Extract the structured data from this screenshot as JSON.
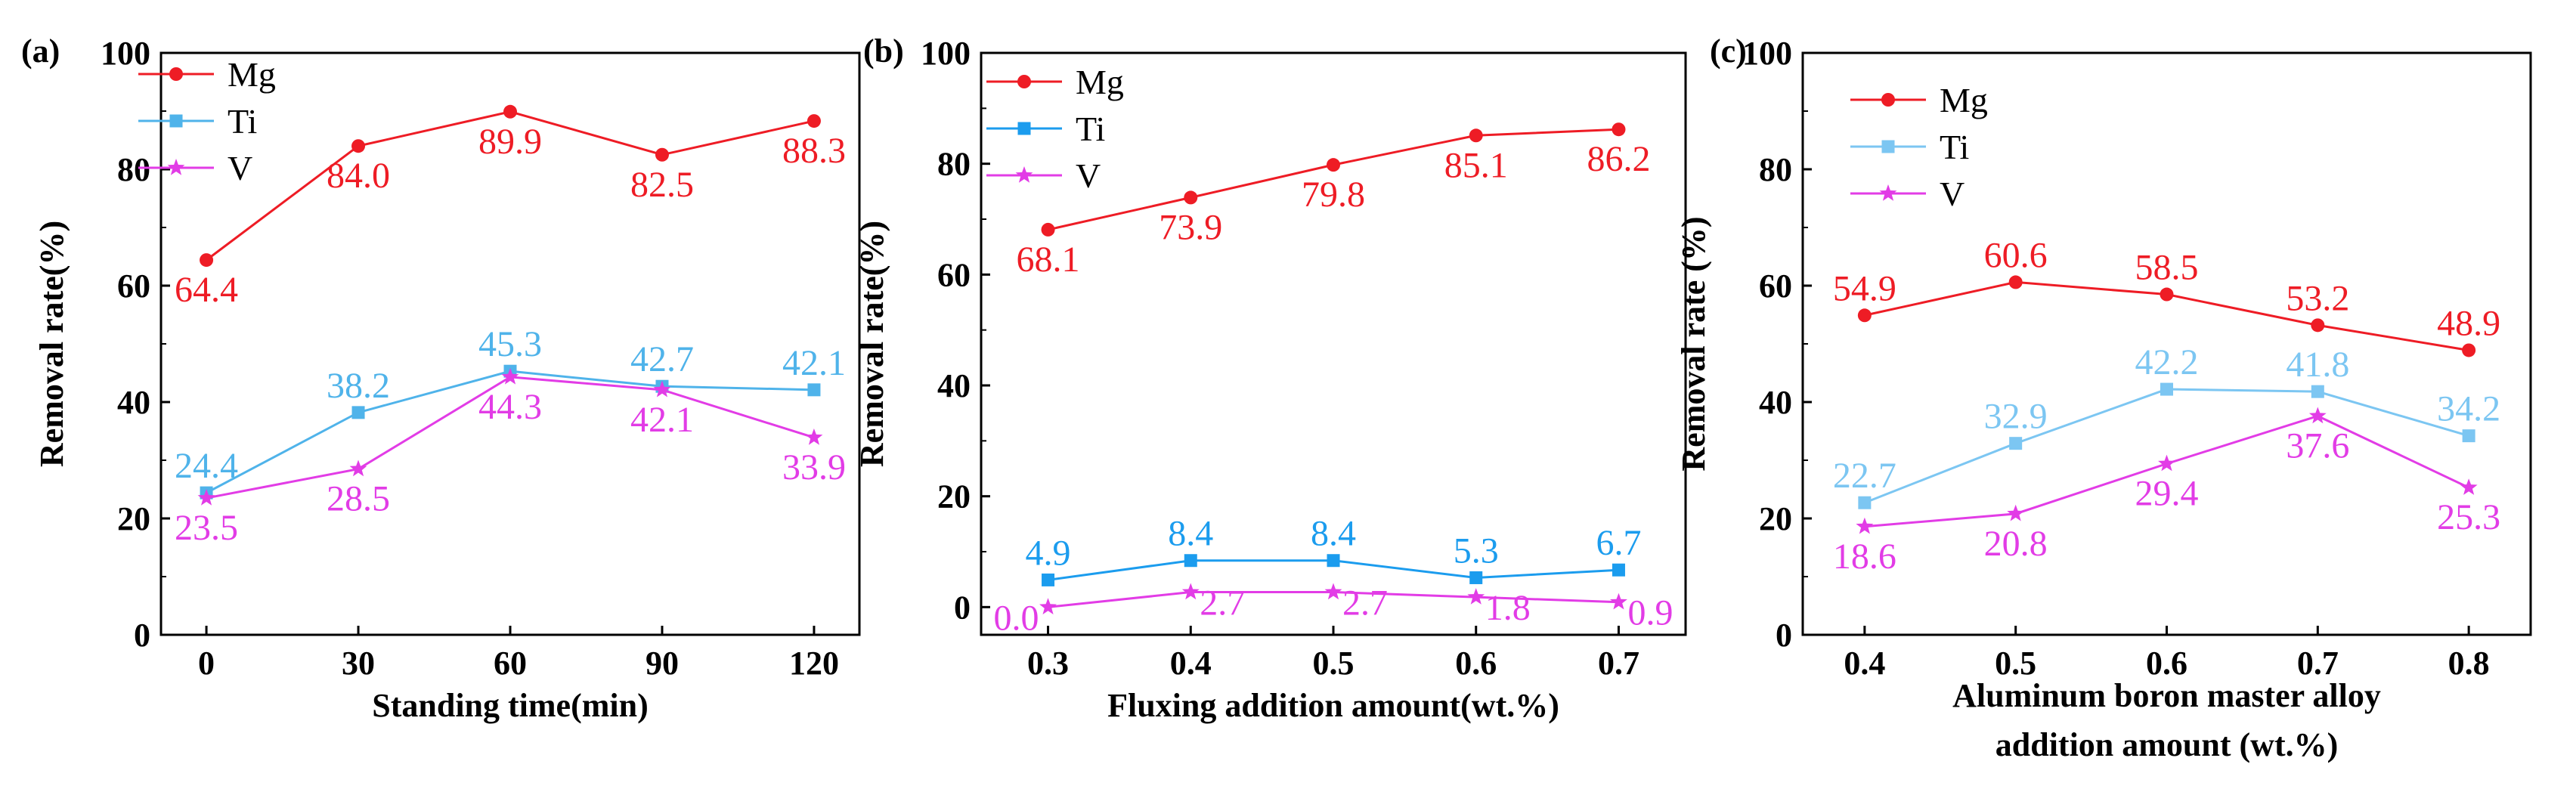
{
  "chart_data": [
    {
      "type": "line",
      "panel_label": "(a)",
      "xlabel": [
        "Standing time(min)"
      ],
      "ylabel": "Removal rate(%)",
      "categories": [
        "0",
        "30",
        "60",
        "90",
        "120"
      ],
      "ylim": [
        0,
        100
      ],
      "yticks": [
        "0",
        "20",
        "40",
        "60",
        "80",
        "100"
      ],
      "series": [
        {
          "name": "Mg",
          "color": "#ee1c25",
          "marker": "circle",
          "values": [
            64.4,
            84.0,
            89.9,
            82.5,
            88.3
          ],
          "labels": [
            "64.4",
            "84.0",
            "89.9",
            "82.5",
            "88.3"
          ],
          "label_pos": [
            "below",
            "below",
            "below",
            "below",
            "below"
          ]
        },
        {
          "name": "Ti",
          "color": "#4fb3ea",
          "marker": "square",
          "values": [
            24.4,
            38.2,
            45.3,
            42.7,
            42.1
          ],
          "labels": [
            "24.4",
            "38.2",
            "45.3",
            "42.7",
            "42.1"
          ],
          "label_pos": [
            "above",
            "above",
            "above",
            "above",
            "above"
          ]
        },
        {
          "name": "V",
          "color": "#e23ce6",
          "marker": "star",
          "values": [
            23.5,
            28.5,
            44.3,
            42.1,
            33.9
          ],
          "labels": [
            "23.5",
            "28.5",
            "44.3",
            "42.1",
            "33.9"
          ],
          "label_pos": [
            "below",
            "below",
            "below",
            "below",
            "below"
          ]
        }
      ]
    },
    {
      "type": "line",
      "panel_label": "(b)",
      "xlabel": [
        "Fluxing  addition amount(wt.%)"
      ],
      "ylabel": "Removal rate(%)",
      "categories": [
        "0.3",
        "0.4",
        "0.5",
        "0.6",
        "0.7"
      ],
      "ylim": [
        -5,
        100
      ],
      "yticks": [
        "0",
        "20",
        "40",
        "60",
        "80",
        "100"
      ],
      "series": [
        {
          "name": "Mg",
          "color": "#ee1c25",
          "marker": "circle",
          "values": [
            68.1,
            73.9,
            79.8,
            85.1,
            86.2
          ],
          "labels": [
            "68.1",
            "73.9",
            "79.8",
            "85.1",
            "86.2"
          ],
          "label_pos": [
            "below",
            "below",
            "below",
            "below",
            "below"
          ]
        },
        {
          "name": "Ti",
          "color": "#1b9cee",
          "marker": "square",
          "values": [
            4.9,
            8.4,
            8.4,
            5.3,
            6.7
          ],
          "labels": [
            "4.9",
            "8.4",
            "8.4",
            "5.3",
            "6.7"
          ],
          "label_pos": [
            "above",
            "above",
            "above",
            "above",
            "above"
          ]
        },
        {
          "name": "V",
          "color": "#e23ce6",
          "marker": "star",
          "values": [
            0.0,
            2.7,
            2.7,
            1.8,
            0.9
          ],
          "labels": [
            "0.0",
            "2.7",
            "2.7",
            "1.8",
            "0.9"
          ],
          "label_pos": [
            "left",
            "right",
            "right",
            "right",
            "right"
          ]
        }
      ]
    },
    {
      "type": "line",
      "panel_label": "(c)",
      "xlabel": [
        "Aluminum boron master alloy",
        "addition amount (wt.%)"
      ],
      "ylabel": "Removal rate (%)",
      "categories": [
        "0.4",
        "0.5",
        "0.6",
        "0.7",
        "0.8"
      ],
      "ylim": [
        0,
        100
      ],
      "yticks": [
        "0",
        "20",
        "40",
        "60",
        "80",
        "100"
      ],
      "series": [
        {
          "name": "Mg",
          "color": "#ee1c25",
          "marker": "circle",
          "values": [
            54.9,
            60.6,
            58.5,
            53.2,
            48.9
          ],
          "labels": [
            "54.9",
            "60.6",
            "58.5",
            "53.2",
            "48.9"
          ],
          "label_pos": [
            "above",
            "above",
            "above",
            "above",
            "above"
          ]
        },
        {
          "name": "Ti",
          "color": "#7cc6f2",
          "marker": "square",
          "values": [
            22.7,
            32.9,
            42.2,
            41.8,
            34.2
          ],
          "labels": [
            "22.7",
            "32.9",
            "42.2",
            "41.8",
            "34.2"
          ],
          "label_pos": [
            "above",
            "above",
            "above",
            "above",
            "above"
          ]
        },
        {
          "name": "V",
          "color": "#e23ce6",
          "marker": "star",
          "values": [
            18.6,
            20.8,
            29.4,
            37.6,
            25.3
          ],
          "labels": [
            "18.6",
            "20.8",
            "29.4",
            "37.6",
            "25.3"
          ],
          "label_pos": [
            "below",
            "below",
            "below",
            "below",
            "below"
          ]
        }
      ]
    }
  ]
}
